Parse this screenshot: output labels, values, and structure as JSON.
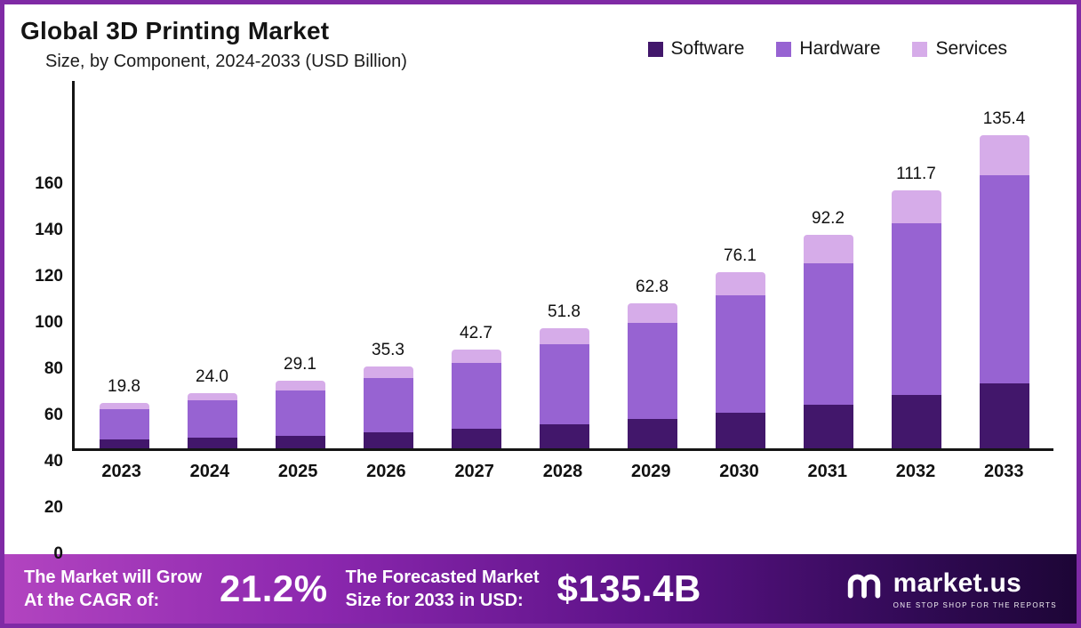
{
  "title": "Global 3D Printing Market",
  "subtitle": "Size, by Component, 2024-2033 (USD Billion)",
  "legend": [
    {
      "label": "Software",
      "color": "#42176b"
    },
    {
      "label": "Hardware",
      "color": "#9763d2"
    },
    {
      "label": "Services",
      "color": "#d6ace9"
    }
  ],
  "chart_data": {
    "type": "bar",
    "stacked": true,
    "title": "Global 3D Printing Market Size, by Component, 2024-2033 (USD Billion)",
    "categories": [
      "2023",
      "2024",
      "2025",
      "2026",
      "2027",
      "2028",
      "2029",
      "2030",
      "2031",
      "2032",
      "2033"
    ],
    "series": [
      {
        "name": "Software",
        "color": "#42176b",
        "values": [
          3.8,
          4.5,
          5.5,
          6.8,
          8.3,
          10.4,
          12.8,
          15.5,
          18.9,
          22.9,
          27.9
        ]
      },
      {
        "name": "Hardware",
        "color": "#9763d2",
        "values": [
          13.3,
          16.2,
          19.6,
          23.6,
          28.6,
          34.5,
          41.5,
          50.6,
          61.1,
          74.6,
          90.1
        ]
      },
      {
        "name": "Services",
        "color": "#d6ace9",
        "values": [
          2.7,
          3.3,
          4.0,
          4.9,
          5.8,
          6.9,
          8.5,
          10.0,
          12.2,
          14.2,
          17.4
        ]
      }
    ],
    "totals": [
      19.8,
      24.0,
      29.1,
      35.3,
      42.7,
      51.8,
      62.8,
      76.1,
      92.2,
      111.7,
      135.4
    ],
    "total_labels": [
      "19.8",
      "24.0",
      "29.1",
      "35.3",
      "42.7",
      "51.8",
      "62.8",
      "76.1",
      "92.2",
      "111.7",
      "135.4"
    ],
    "xlabel": "",
    "ylabel": "",
    "ylim": [
      0,
      160
    ],
    "yticks": [
      0,
      20,
      40,
      60,
      80,
      100,
      120,
      140,
      160
    ],
    "grid": false,
    "legend_position": "top-right"
  },
  "banner": {
    "left_line1": "The Market will Grow",
    "left_line2": "At the CAGR of:",
    "cagr_value": "21.2%",
    "right_line1": "The Forecasted Market",
    "right_line2": "Size for 2033 in USD:",
    "forecast_value": "$135.4B",
    "brand": "market.us",
    "brand_tagline": "One Stop Shop For The Reports"
  }
}
